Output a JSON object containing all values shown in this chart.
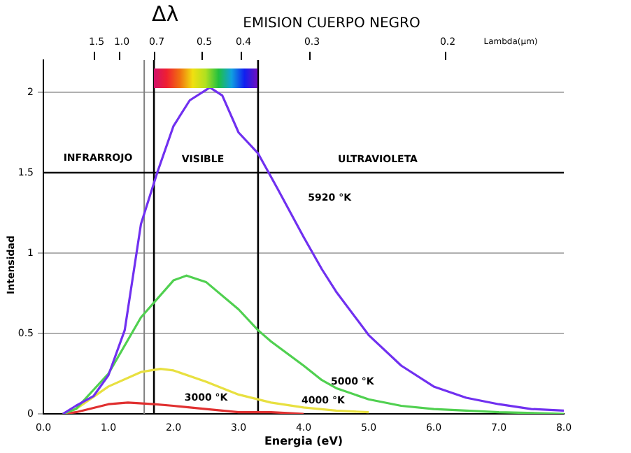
{
  "chart_data": {
    "type": "line",
    "title": "EMISION CUERPO NEGRO",
    "xlabel": "Energia (eV)",
    "ylabel": "Intensidad",
    "xlim": [
      0,
      8
    ],
    "xticks": [
      {
        "value": 0,
        "label": "0.0"
      },
      {
        "value": 1,
        "label": "1.0"
      },
      {
        "value": 2,
        "label": "2.0"
      },
      {
        "value": 3,
        "label": "3.0"
      },
      {
        "value": 4,
        "label": "4.0"
      },
      {
        "value": 5,
        "label": "5.0"
      },
      {
        "value": 6,
        "label": "6.0"
      },
      {
        "value": 7,
        "label": "7.0"
      },
      {
        "value": 8,
        "label": "8.0"
      }
    ],
    "ylim": [
      0,
      2.2
    ],
    "yticks": [
      0,
      0.5,
      1,
      1.5,
      2
    ],
    "grid": "y",
    "legend": false,
    "marker": "none",
    "line_style": "solid",
    "series": [
      {
        "name": "5920 °K",
        "color": "#7030f0",
        "x": [
          0.3,
          0.5,
          0.77,
          1.0,
          1.25,
          1.5,
          1.75,
          2.0,
          2.25,
          2.56,
          2.75,
          3.0,
          3.3,
          3.6,
          4.0,
          4.28,
          4.5,
          5.0,
          5.5,
          6.0,
          6.5,
          7.0,
          7.5,
          8.0
        ],
        "values": [
          0,
          0.05,
          0.11,
          0.24,
          0.52,
          1.18,
          1.5,
          1.79,
          1.95,
          2.03,
          1.98,
          1.75,
          1.62,
          1.4,
          1.1,
          0.9,
          0.76,
          0.49,
          0.3,
          0.17,
          0.1,
          0.06,
          0.03,
          0.02
        ]
      },
      {
        "name": "5000 °K",
        "color": "#50d050",
        "x": [
          0.3,
          0.5,
          1.0,
          1.5,
          2.0,
          2.2,
          2.5,
          3.0,
          3.3,
          3.5,
          4.0,
          4.28,
          4.5,
          5.0,
          5.5,
          6.0,
          6.5,
          7.0,
          8.0
        ],
        "values": [
          0,
          0.03,
          0.25,
          0.6,
          0.83,
          0.86,
          0.82,
          0.65,
          0.52,
          0.45,
          0.3,
          0.21,
          0.16,
          0.09,
          0.05,
          0.03,
          0.02,
          0.01,
          0
        ]
      },
      {
        "name": "4000 °K",
        "color": "#e8e040",
        "x": [
          0.3,
          0.5,
          1.0,
          1.5,
          1.8,
          2.0,
          2.5,
          3.0,
          3.5,
          4.0,
          4.5,
          5.0
        ],
        "values": [
          0,
          0.03,
          0.17,
          0.26,
          0.28,
          0.27,
          0.2,
          0.12,
          0.07,
          0.04,
          0.02,
          0.01
        ]
      },
      {
        "name": "3000 °K",
        "color": "#e03030",
        "x": [
          0.3,
          0.5,
          1.0,
          1.3,
          1.7,
          2.0,
          2.5,
          3.0,
          3.5,
          4.0
        ],
        "values": [
          0,
          0.01,
          0.06,
          0.07,
          0.06,
          0.05,
          0.03,
          0.01,
          0.01,
          0
        ]
      }
    ],
    "ref_lines": [
      {
        "axis": "x",
        "value": 1.55,
        "color": "#808080"
      },
      {
        "axis": "x",
        "value": 1.7,
        "color": "#000000"
      },
      {
        "axis": "x",
        "value": 3.3,
        "color": "#000000"
      },
      {
        "axis": "y",
        "value": 1.5,
        "color": "#000000"
      }
    ],
    "annotations": [
      "Δλ",
      "INFRARROJO",
      "VISIBLE",
      "ULTRAVIOLETA",
      "Lambda(µm)",
      "1.5",
      "1.0",
      "0.7",
      "0.5",
      "0.4",
      "0.3",
      "0.2"
    ]
  }
}
